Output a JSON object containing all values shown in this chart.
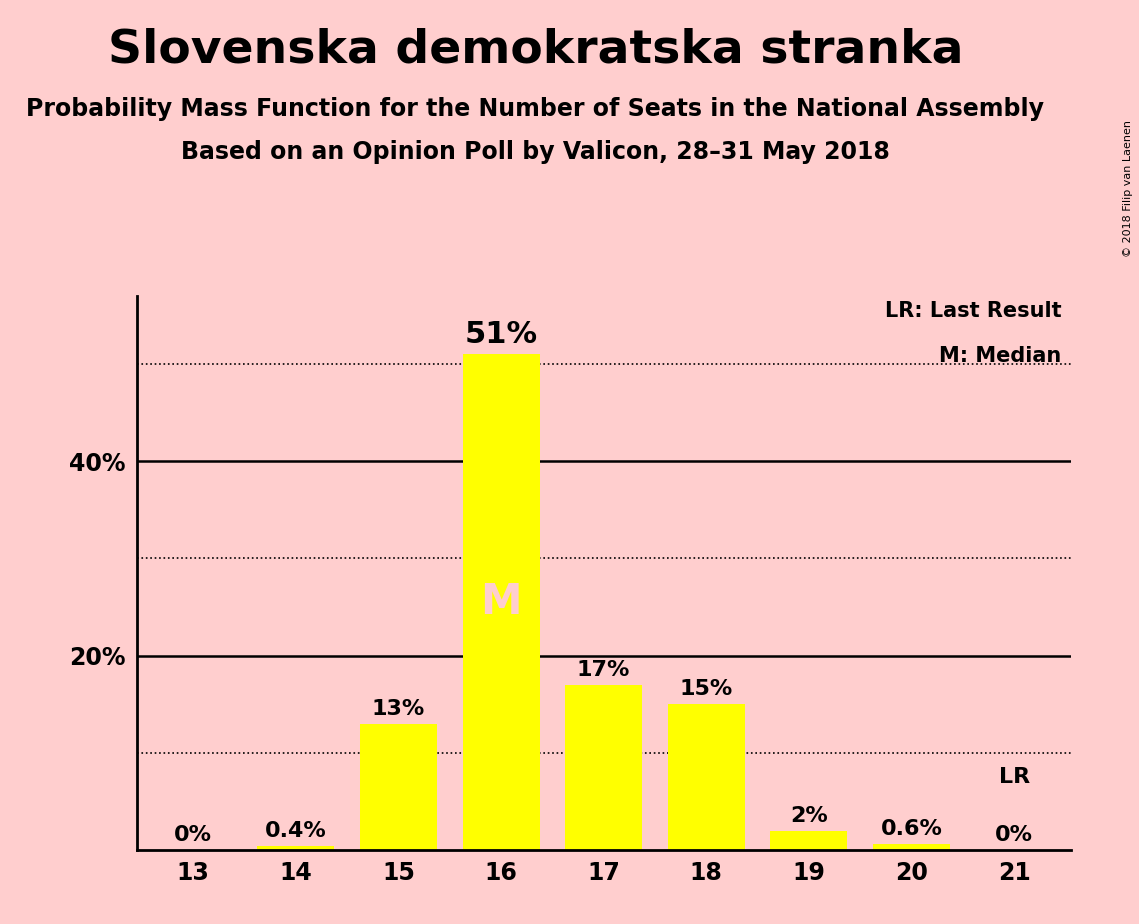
{
  "title": "Slovenska demokratska stranka",
  "subtitle1": "Probability Mass Function for the Number of Seats in the National Assembly",
  "subtitle2": "Based on an Opinion Poll by Valicon, 28–31 May 2018",
  "copyright": "© 2018 Filip van Laenen",
  "categories": [
    13,
    14,
    15,
    16,
    17,
    18,
    19,
    20,
    21
  ],
  "values": [
    0.0,
    0.4,
    13.0,
    51.0,
    17.0,
    15.0,
    2.0,
    0.6,
    0.0
  ],
  "labels": [
    "0%",
    "0.4%",
    "13%",
    "51%",
    "17%",
    "15%",
    "2%",
    "0.6%",
    "0%"
  ],
  "bar_color": "#FFFF00",
  "background_color": "#FFCECE",
  "median_bar": 16,
  "lr_bar": 21,
  "median_label_color": "#FFCECE",
  "solid_gridlines": [
    20.0,
    40.0
  ],
  "dotted_gridlines": [
    10.0,
    30.0,
    50.0
  ],
  "ylim": [
    0,
    57
  ],
  "ytick_positions": [
    20.0,
    40.0
  ],
  "ytick_labels": [
    "20%",
    "40%"
  ],
  "legend_lr": "LR: Last Result",
  "legend_m": "M: Median",
  "lr_label": "LR",
  "m_label": "M",
  "label_fontsize": 16,
  "title_fontsize": 34,
  "subtitle_fontsize": 17,
  "tick_fontsize": 17,
  "legend_fontsize": 15,
  "bar_width": 0.75
}
